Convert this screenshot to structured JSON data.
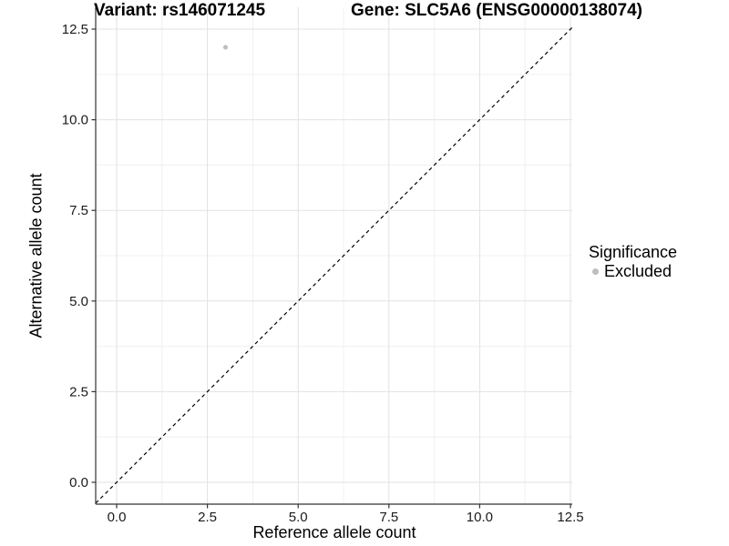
{
  "chart_data": {
    "type": "scatter",
    "title_left": "Variant: rs146071245",
    "title_right": "Gene: SLC5A6 (ENSG00000138074)",
    "xlabel": "Reference allele count",
    "ylabel": "Alternative allele count",
    "xlim": [
      -0.6,
      12.55
    ],
    "ylim": [
      -0.6,
      13.1
    ],
    "x_ticks": [
      0.0,
      2.5,
      5.0,
      7.5,
      10.0,
      12.5
    ],
    "x_tick_labels": [
      "0.0",
      "2.5",
      "5.0",
      "7.5",
      "10.0",
      "12.5"
    ],
    "y_ticks": [
      0.0,
      2.5,
      5.0,
      7.5,
      10.0,
      12.5
    ],
    "y_tick_labels": [
      "0.0",
      "2.5",
      "5.0",
      "7.5",
      "10.0",
      "12.5"
    ],
    "minor_ticks": [
      1.25,
      3.75,
      6.25,
      8.75,
      11.25
    ],
    "grid": true,
    "identity_line": {
      "style": "dashed",
      "color": "#000000",
      "equation": "y = x"
    },
    "series": [
      {
        "name": "Excluded",
        "color": "#bebebe",
        "points": [
          {
            "x": 3,
            "y": 12
          }
        ]
      }
    ],
    "legend": {
      "title": "Significance",
      "position": "right",
      "items": [
        {
          "label": "Excluded",
          "color": "#bebebe"
        }
      ]
    },
    "colors": {
      "background": "#ffffff",
      "grid_major": "#e2e2e2",
      "grid_minor": "#f0f0f0",
      "axis_line": "#333333",
      "tick_label": "#1a1a1a",
      "title": "#000000",
      "point": "#bebebe"
    }
  }
}
